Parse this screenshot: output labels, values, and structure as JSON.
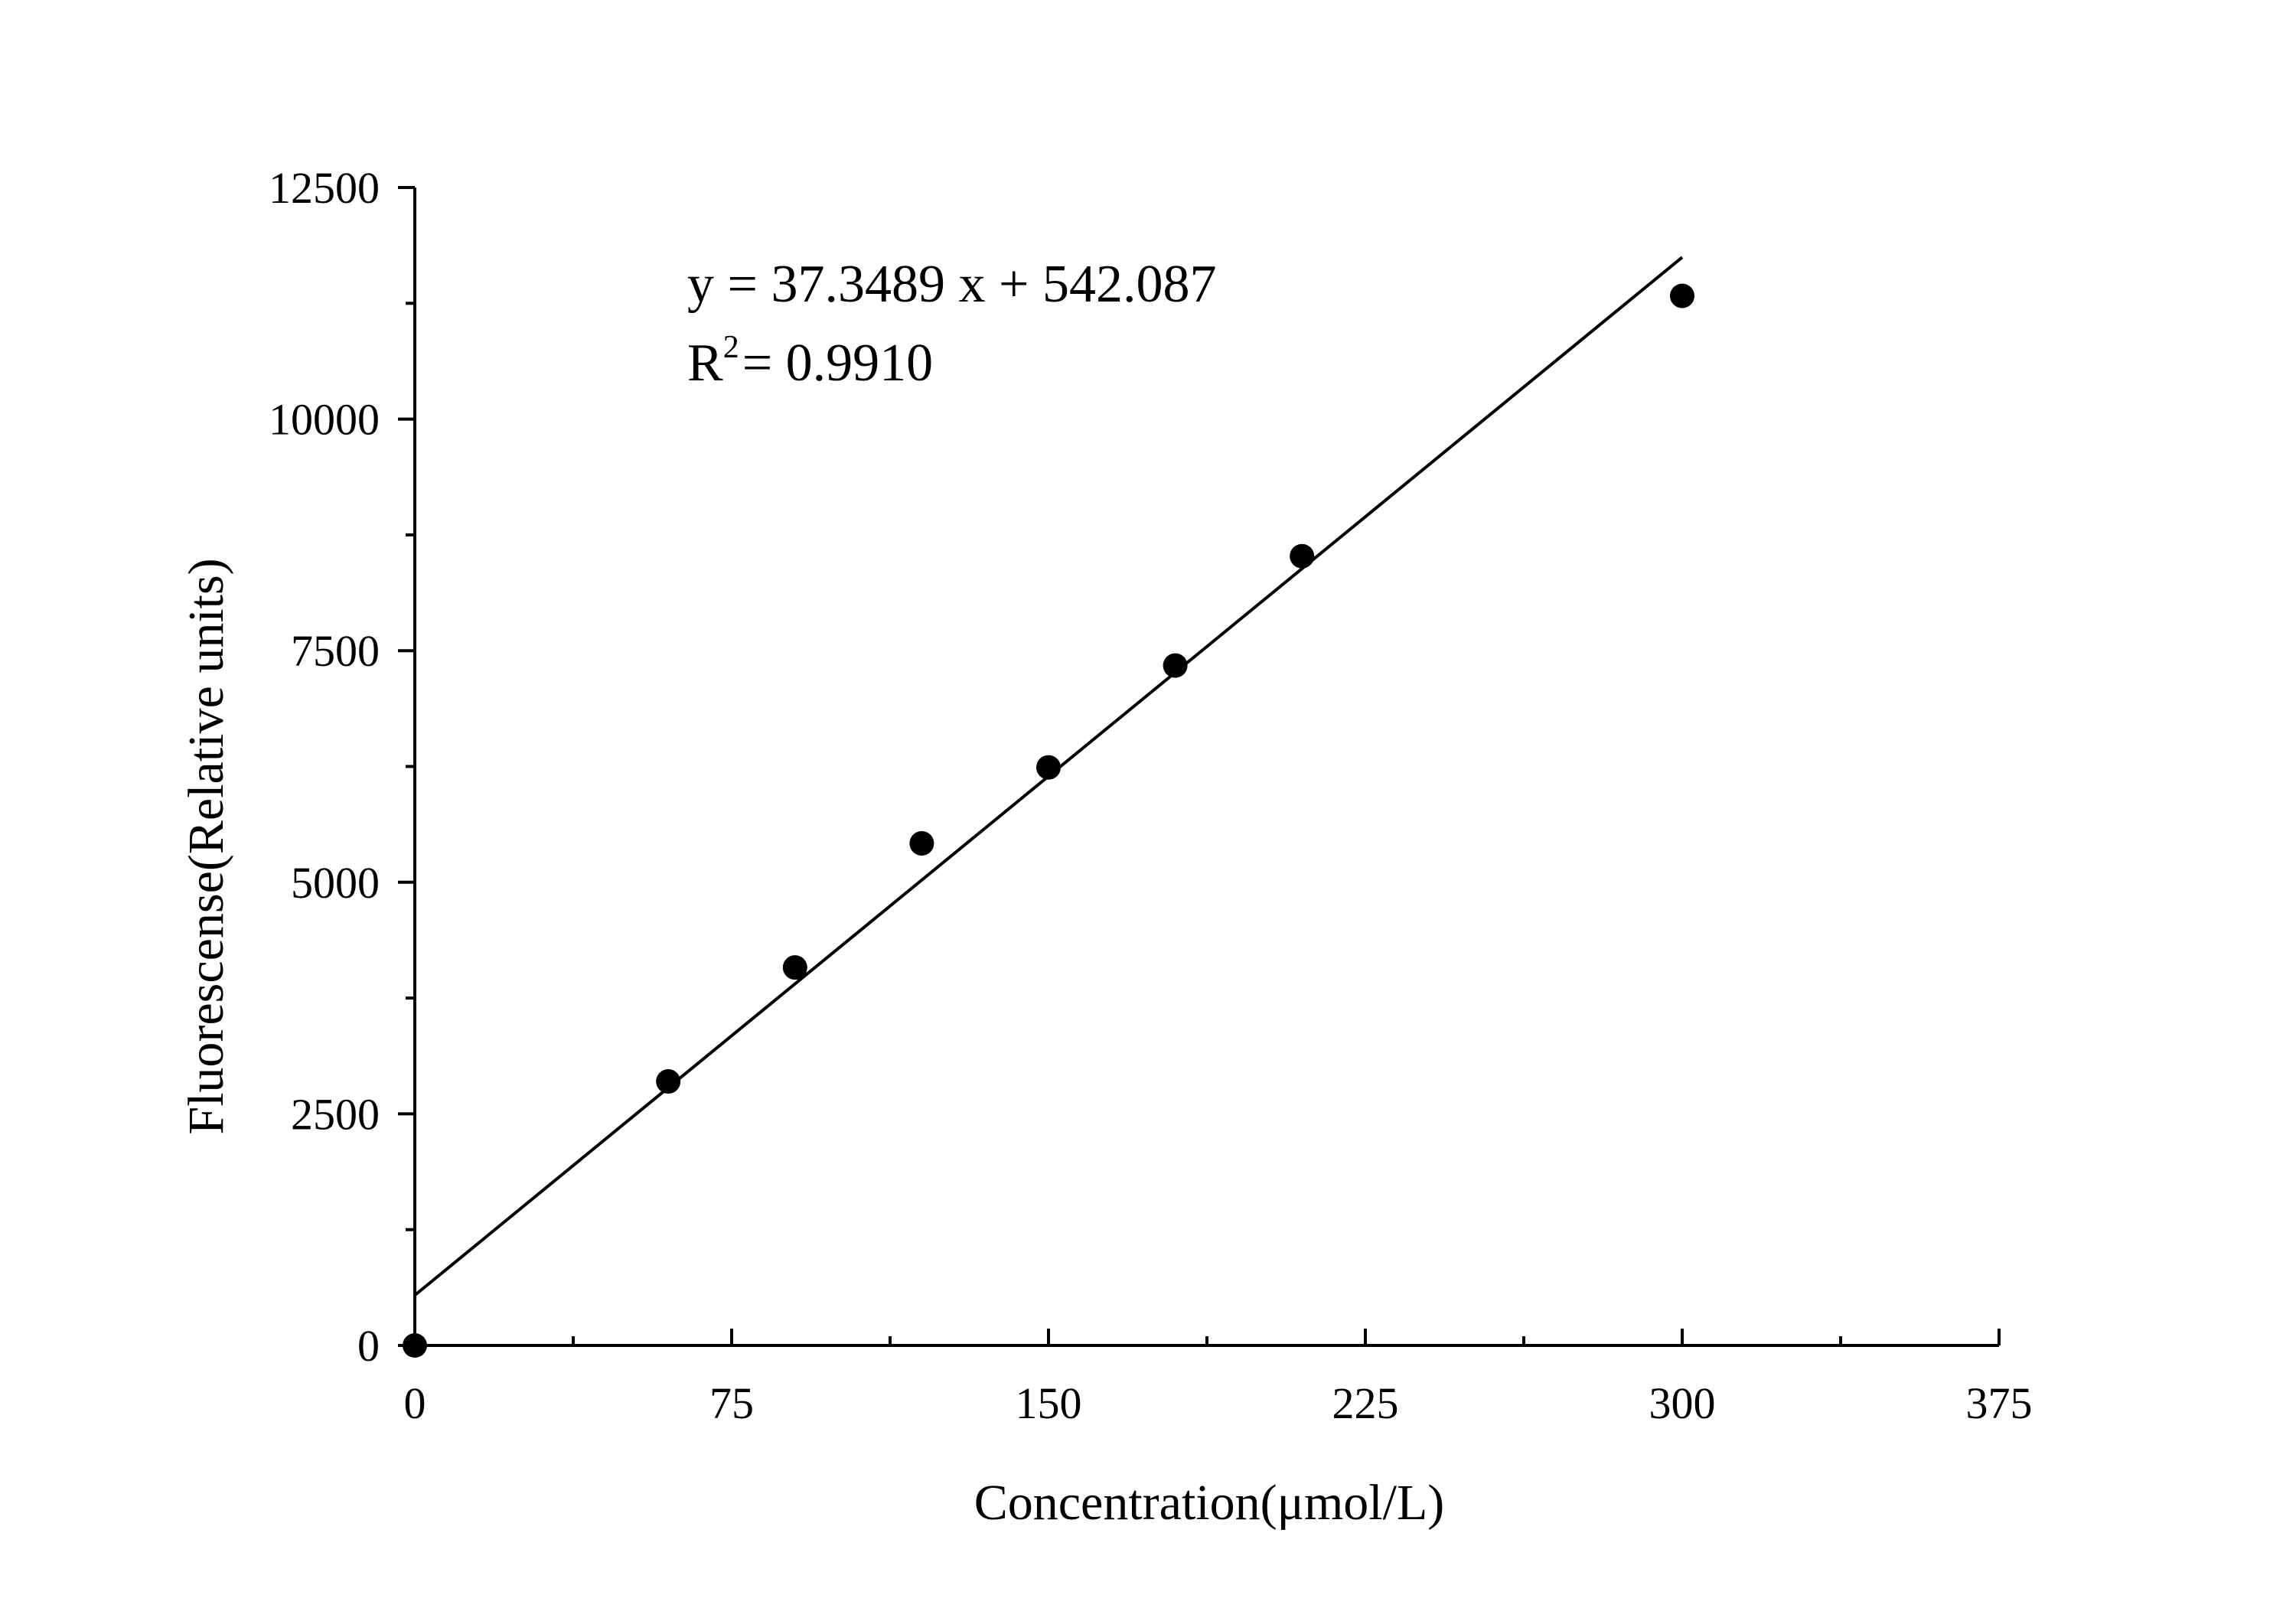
{
  "chart_data": {
    "type": "scatter",
    "xlabel": "Concentration(μmol/L)",
    "ylabel": "Fluorescense(Relative units)",
    "xlim": [
      0,
      375
    ],
    "ylim": [
      0,
      12500
    ],
    "xticks": [
      0,
      75,
      150,
      225,
      300,
      375
    ],
    "yticks": [
      0,
      2500,
      5000,
      7500,
      10000,
      12500
    ],
    "x_minor_step": 37.5,
    "y_minor_step": 1250,
    "grid": false,
    "points": [
      {
        "x": 0,
        "y": 0
      },
      {
        "x": 60,
        "y": 2850
      },
      {
        "x": 90,
        "y": 4080
      },
      {
        "x": 120,
        "y": 5420
      },
      {
        "x": 150,
        "y": 6240
      },
      {
        "x": 180,
        "y": 7340
      },
      {
        "x": 210,
        "y": 8520
      },
      {
        "x": 300,
        "y": 11330
      }
    ],
    "fit": {
      "slope": 37.3489,
      "intercept": 542.087,
      "x_range": [
        0,
        300
      ]
    },
    "annotations": {
      "equation": "y = 37.3489 x + 542.087",
      "r2_prefix": "R",
      "r2_sup": "2",
      "r2_value": "= 0.9910"
    }
  }
}
